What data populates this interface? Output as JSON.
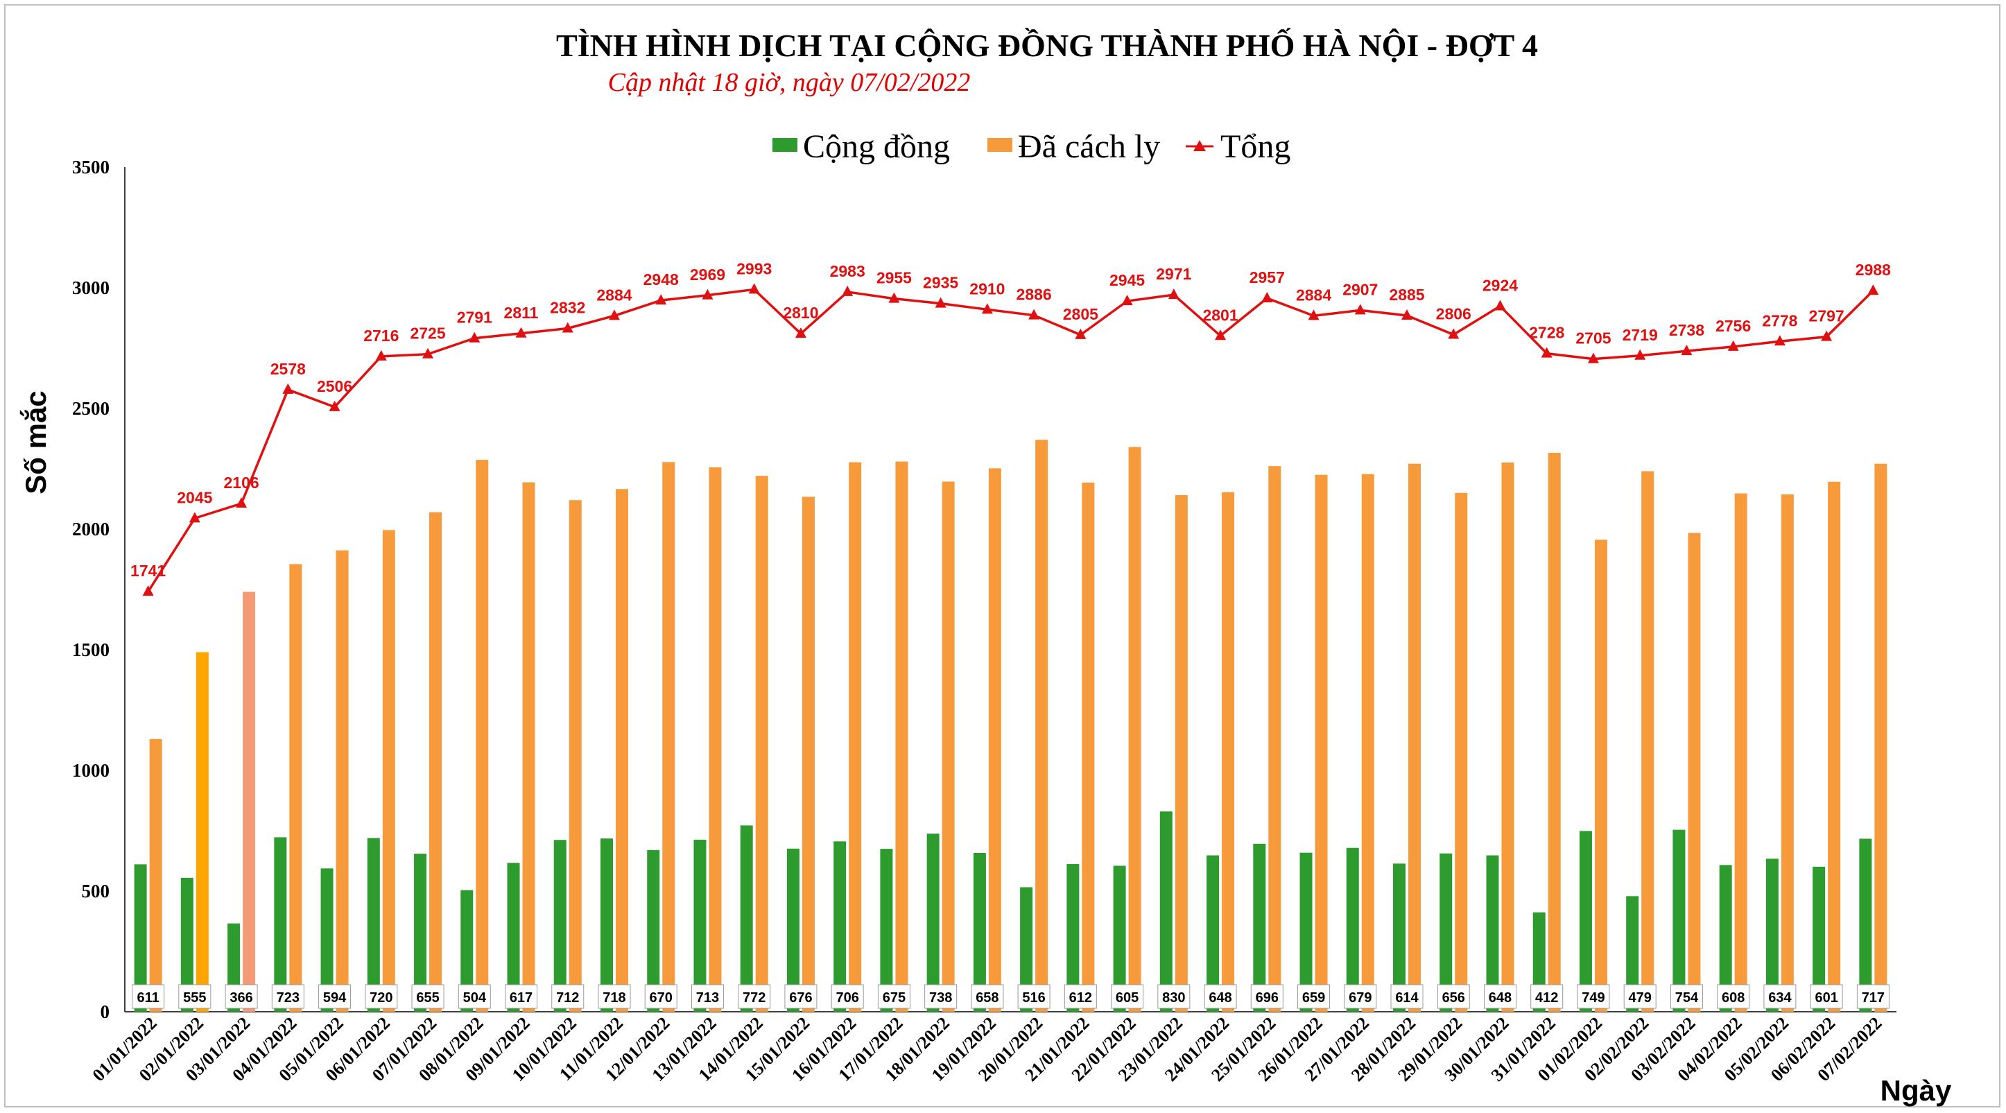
{
  "title": "TÌNH HÌNH DỊCH TẠI CỘNG ĐỒNG THÀNH PHỐ HÀ NỘI - ĐỢT 4",
  "subtitle": "Cập nhật 18 giờ, ngày  07/02/2022",
  "chart_data": {
    "type": "bar",
    "xlabel": "Ngày",
    "ylabel": "Số mắc",
    "ylim": [
      0,
      3500
    ],
    "yticks": [
      0,
      500,
      1000,
      1500,
      2000,
      2500,
      3000,
      3500
    ],
    "legend_position": "top-center",
    "categories": [
      "01/01/2022",
      "02/01/2022",
      "03/01/2022",
      "04/01/2022",
      "05/01/2022",
      "06/01/2022",
      "07/01/2022",
      "08/01/2022",
      "09/01/2022",
      "10/01/2022",
      "11/01/2022",
      "12/01/2022",
      "13/01/2022",
      "14/01/2022",
      "15/01/2022",
      "16/01/2022",
      "17/01/2022",
      "18/01/2022",
      "19/01/2022",
      "20/01/2022",
      "21/01/2022",
      "22/01/2022",
      "23/01/2022",
      "24/01/2022",
      "25/01/2022",
      "26/01/2022",
      "27/01/2022",
      "28/01/2022",
      "29/01/2022",
      "30/01/2022",
      "31/01/2022",
      "01/02/2022",
      "02/02/2022",
      "03/02/2022",
      "04/02/2022",
      "05/02/2022",
      "06/02/2022",
      "07/02/2022"
    ],
    "series": [
      {
        "name": "Cộng đồng",
        "kind": "bar",
        "color": "#2e9b2e",
        "values": [
          611,
          555,
          366,
          723,
          594,
          720,
          655,
          504,
          617,
          712,
          718,
          670,
          713,
          772,
          676,
          706,
          675,
          738,
          658,
          516,
          612,
          605,
          830,
          648,
          696,
          659,
          679,
          614,
          656,
          648,
          412,
          749,
          479,
          754,
          608,
          634,
          601,
          717
        ]
      },
      {
        "name": "Đã cách ly",
        "kind": "bar",
        "color": "#f79a3c",
        "highlight_colors": {
          "1": "#ffa500",
          "2": "#f59a76"
        },
        "values": [
          1130,
          1490,
          1740,
          1855,
          1912,
          1996,
          2070,
          2287,
          2194,
          2120,
          2166,
          2278,
          2256,
          2221,
          2134,
          2277,
          2280,
          2197,
          2252,
          2370,
          2193,
          2340,
          2141,
          2153,
          2261,
          2225,
          2228,
          2271,
          2150,
          2276,
          2316,
          1956,
          2240,
          1984,
          2148,
          2144,
          2196,
          2271
        ]
      },
      {
        "name": "Tổng",
        "kind": "line",
        "color": "#e01010",
        "values": [
          1741,
          2045,
          2106,
          2578,
          2506,
          2716,
          2725,
          2791,
          2811,
          2832,
          2884,
          2948,
          2969,
          2993,
          2810,
          2983,
          2955,
          2935,
          2910,
          2886,
          2805,
          2945,
          2971,
          2801,
          2957,
          2884,
          2907,
          2885,
          2806,
          2924,
          2728,
          2705,
          2719,
          2738,
          2756,
          2778,
          2797,
          2988
        ]
      }
    ]
  }
}
